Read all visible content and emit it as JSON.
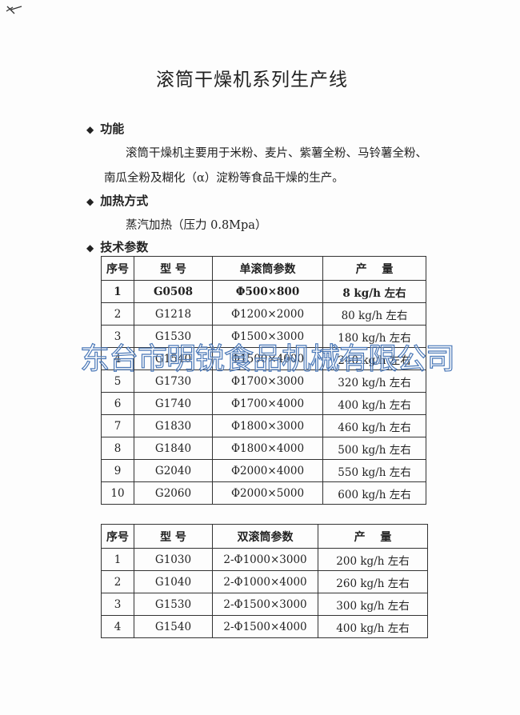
{
  "title": "滚筒干燥机系列生产线",
  "sections": [
    {
      "heading": "功能",
      "text1": "滚筒干燥机主要用于米粉、麦片、紫薯全粉、马铃薯全粉、",
      "text2": "南瓜全粉及糊化（α）淀粉等食品干燥的生产。"
    },
    {
      "heading": "加热方式",
      "text1": "蒸汽加热（压力 0.8Mpa）"
    },
    {
      "heading": "技术参数"
    }
  ],
  "table1": {
    "headers": [
      "序号",
      "型 号",
      "单滚筒参数",
      "产　 量"
    ],
    "rows": [
      [
        "1",
        "G0508",
        "Φ500×800",
        "8 kg/h 左右"
      ],
      [
        "2",
        "G1218",
        "Φ1200×2000",
        "80 kg/h 左右"
      ],
      [
        "3",
        "G1530",
        "Φ1500×3000",
        "180 kg/h 左右"
      ],
      [
        "4",
        "G1540",
        "Φ1500×4000",
        "240 kg/h 左右"
      ],
      [
        "5",
        "G1730",
        "Φ1700×3000",
        "320 kg/h 左右"
      ],
      [
        "6",
        "G1740",
        "Φ1700×4000",
        "400 kg/h 左右"
      ],
      [
        "7",
        "G1830",
        "Φ1800×3000",
        "460 kg/h 左右"
      ],
      [
        "8",
        "G1840",
        "Φ1800×4000",
        "500 kg/h 左右"
      ],
      [
        "9",
        "G2040",
        "Φ2000×4000",
        "550 kg/h 左右"
      ],
      [
        "10",
        "G2060",
        "Φ2000×5000",
        "600 kg/h 左右"
      ]
    ]
  },
  "table2": {
    "headers": [
      "序号",
      "型 号",
      "双滚筒参数",
      "产　 量"
    ],
    "rows": [
      [
        "1",
        "G1030",
        "2-Φ1000×3000",
        "200 kg/h 左右"
      ],
      [
        "2",
        "G1040",
        "2-Φ1000×4000",
        "260 kg/h 左右"
      ],
      [
        "3",
        "G1530",
        "2-Φ1500×3000",
        "300 kg/h 左右"
      ],
      [
        "4",
        "G1540",
        "2-Φ1500×4000",
        "400 kg/h 左右"
      ]
    ]
  },
  "watermark": "东台市明锐食品机械有限公司"
}
